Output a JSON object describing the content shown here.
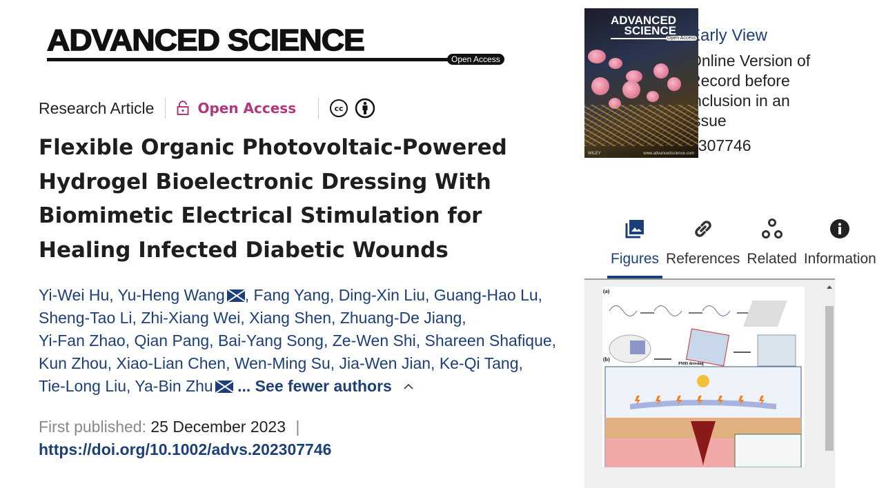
{
  "journal_logo": {
    "name": "ADVANCED SCIENCE",
    "badge": "Open Access"
  },
  "meta": {
    "article_type": "Research Article",
    "access": "Open Access",
    "license_icons": [
      "cc-icon",
      "by-attribution-icon"
    ],
    "cc_text": "cc"
  },
  "title_lines": [
    "Flexible Organic Photovoltaic-Powered",
    "Hydrogel Bioelectronic Dressing With",
    "Biomimetic Electrical Stimulation for",
    "Healing Infected Diabetic Wounds"
  ],
  "authors": {
    "lines": [
      "Yi-Wei Hu, Yu-Heng Wang",
      ", Fang Yang, Ding-Xin Liu, Guang-Hao Lu,",
      "Sheng-Tao Li, Zhi-Xiang Wei, Xiang Shen, Zhuang-De Jiang,",
      "Yi-Fan Zhao, Qian Pang, Bai-Yang Song, Ze-Wen Shi, Shareen Shafique,",
      "Kun Zhou, Xiao-Lian Chen, Wen-Ming Su, Jia-Wen Jian, Ke-Qi Tang,",
      "Tie-Long Liu, Ya-Bin Zhu"
    ],
    "toggle": "... See fewer authors",
    "toggle_icon": "chevron-up-icon"
  },
  "publication": {
    "first_published_label": "First published:",
    "date": "25 December 2023",
    "separator": "|",
    "doi": "https://doi.org/10.1002/advs.202307746"
  },
  "cover": {
    "title_line1": "ADVANCED",
    "title_line2": "SCIENCE",
    "badge": "Open Access",
    "publisher": "WILEY",
    "site": "www.advancedscience.com"
  },
  "early_view": {
    "heading": "Early View",
    "text": "Online Version of Record before inclusion in an issue",
    "number": "2307746"
  },
  "tabs": [
    {
      "label": "Figures",
      "icon": "image-gallery-icon",
      "active": true
    },
    {
      "label": "References",
      "icon": "link-icon",
      "active": false
    },
    {
      "label": "Related",
      "icon": "related-circles-icon",
      "active": false
    },
    {
      "label": "Information",
      "icon": "info-icon",
      "active": false
    }
  ],
  "figure": {
    "panel_a": "(a)",
    "panel_b": "(b)",
    "caption_label": "PMH dressing"
  },
  "colors": {
    "link": "#1c3f7a",
    "open_access": "#b5357a",
    "muted": "#888888"
  }
}
